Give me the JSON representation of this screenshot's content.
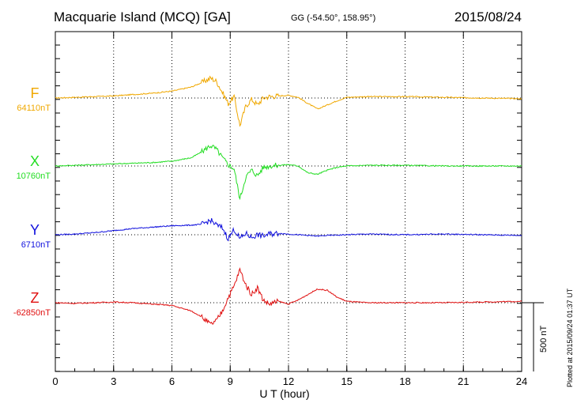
{
  "header": {
    "station": "Macquarie Island (MCQ)  [GA]",
    "coords": "GG (-54.50°, 158.95°)",
    "date": "2015/08/24"
  },
  "footer": {
    "plotted": "Plotted at 2015/09/24 01:37 UT"
  },
  "chart_data": {
    "type": "line",
    "title": "Macquarie Island (MCQ)  [GA]",
    "xlabel": "U T (hour)",
    "ylabel": "",
    "xlim": [
      0,
      24
    ],
    "xticks": [
      "0",
      "3",
      "6",
      "9",
      "12",
      "15",
      "18",
      "21",
      "24"
    ],
    "grid": true,
    "scale_bar": "500 nT",
    "series": [
      {
        "name": "F",
        "baseline_label": "64110nT",
        "color": "#f0a800",
        "x": [
          0,
          1,
          2,
          3,
          4,
          5,
          6,
          7,
          7.5,
          8,
          8.3,
          8.6,
          8.9,
          9.2,
          9.5,
          9.8,
          10.1,
          10.4,
          10.7,
          11,
          11.5,
          12,
          12.5,
          13,
          13.5,
          14,
          14.5,
          15,
          16,
          18,
          20,
          22,
          24
        ],
        "y": [
          0,
          5,
          10,
          15,
          25,
          35,
          50,
          80,
          110,
          145,
          120,
          40,
          -40,
          10,
          -200,
          -60,
          -10,
          -50,
          0,
          10,
          15,
          20,
          5,
          -40,
          -80,
          -50,
          -20,
          5,
          10,
          10,
          5,
          0,
          -5
        ]
      },
      {
        "name": "X",
        "baseline_label": "10760nT",
        "color": "#22dd22",
        "x": [
          0,
          1,
          2,
          3,
          4,
          5,
          6,
          7,
          7.5,
          8,
          8.3,
          8.6,
          8.9,
          9.2,
          9.5,
          9.8,
          10.1,
          10.4,
          10.7,
          11,
          11.5,
          12,
          12.5,
          13,
          13.5,
          14,
          14.5,
          15,
          16,
          18,
          20,
          22,
          24
        ],
        "y": [
          0,
          5,
          10,
          15,
          20,
          25,
          35,
          60,
          100,
          150,
          120,
          60,
          10,
          -20,
          -240,
          -80,
          -30,
          -70,
          -10,
          0,
          5,
          10,
          0,
          -50,
          -60,
          -30,
          -10,
          0,
          5,
          5,
          0,
          0,
          0
        ]
      },
      {
        "name": "Y",
        "baseline_label": "6710nT",
        "color": "#1010dd",
        "x": [
          0,
          1,
          2,
          3,
          4,
          5,
          6,
          7,
          7.5,
          8,
          8.3,
          8.6,
          8.9,
          9.2,
          9.5,
          9.8,
          10.1,
          10.4,
          10.7,
          11,
          11.5,
          12,
          12.5,
          13,
          13.5,
          14,
          15,
          16,
          18,
          20,
          22,
          24
        ],
        "y": [
          0,
          5,
          15,
          30,
          45,
          55,
          65,
          70,
          75,
          105,
          70,
          50,
          -30,
          40,
          -30,
          10,
          -20,
          0,
          -10,
          5,
          10,
          5,
          0,
          -5,
          -10,
          -5,
          0,
          5,
          0,
          5,
          0,
          -5
        ]
      },
      {
        "name": "Z",
        "baseline_label": "-62850nT",
        "color": "#e01010",
        "x": [
          0,
          1,
          2,
          3,
          4,
          5,
          6,
          6.5,
          7,
          7.5,
          8,
          8.3,
          8.6,
          8.9,
          9.2,
          9.5,
          9.8,
          10.1,
          10.4,
          10.7,
          11,
          11.5,
          12,
          12.5,
          13,
          13.5,
          14,
          14.5,
          15,
          16,
          18,
          20,
          22,
          24
        ],
        "y": [
          0,
          -5,
          0,
          5,
          0,
          -10,
          -20,
          -40,
          -60,
          -100,
          -160,
          -130,
          -60,
          40,
          120,
          240,
          130,
          60,
          110,
          20,
          -10,
          10,
          -10,
          20,
          60,
          100,
          90,
          40,
          10,
          0,
          0,
          0,
          5,
          10
        ]
      }
    ]
  }
}
